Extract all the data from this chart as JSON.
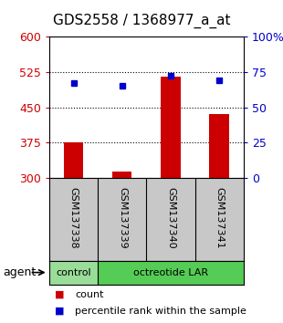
{
  "title": "GDS2558 / 1368977_a_at",
  "samples": [
    "GSM137338",
    "GSM137339",
    "GSM137340",
    "GSM137341"
  ],
  "bar_values": [
    375,
    315,
    515,
    435
  ],
  "bar_baseline": 300,
  "bar_color": "#cc0000",
  "percentile_values": [
    67,
    65,
    72,
    69
  ],
  "percentile_color": "#0000cc",
  "left_ylim": [
    300,
    600
  ],
  "left_yticks": [
    300,
    375,
    450,
    525,
    600
  ],
  "right_ylim": [
    0,
    100
  ],
  "right_yticks": [
    0,
    25,
    50,
    75,
    100
  ],
  "right_yticklabels": [
    "0",
    "25",
    "50",
    "75",
    "100%"
  ],
  "left_tick_color": "#cc0000",
  "right_tick_color": "#0000cc",
  "agent_label": "agent",
  "control_color": "#99dd99",
  "octreotide_color": "#55cc55",
  "control_label": "control",
  "octreotide_label": "octreotide LAR",
  "legend_count_label": "count",
  "legend_pct_label": "percentile rank within the sample",
  "bg_color": "#ffffff",
  "plot_bg_color": "#ffffff",
  "xlabel_area_color": "#c8c8c8",
  "grid_yticks": [
    375,
    450,
    525
  ],
  "bar_width": 0.4
}
